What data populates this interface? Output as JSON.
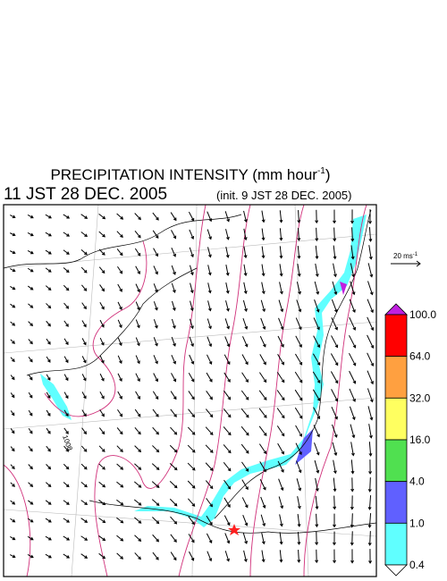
{
  "header": {
    "title": "PRECIPITATION INTENSITY (mm hour",
    "title_exponent": "-1",
    "title_close": ")",
    "valid_time": "11 JST 28 DEC. 2005",
    "init_time": "(init. 9 JST 28 DEC. 2005)"
  },
  "wind_scale": {
    "label": "20 ms",
    "exponent": "-1"
  },
  "isobar_label": "1008",
  "colorbar": {
    "levels": [
      "100.0",
      "64.0",
      "32.0",
      "16.0",
      "4.0",
      "1.0",
      "0.4"
    ],
    "colors": [
      "#ff0000",
      "#ffa040",
      "#ffff60",
      "#50e050",
      "#6060ff",
      "#60ffff"
    ],
    "over_color": "#c020e0",
    "under_color": "#ffffff"
  }
}
